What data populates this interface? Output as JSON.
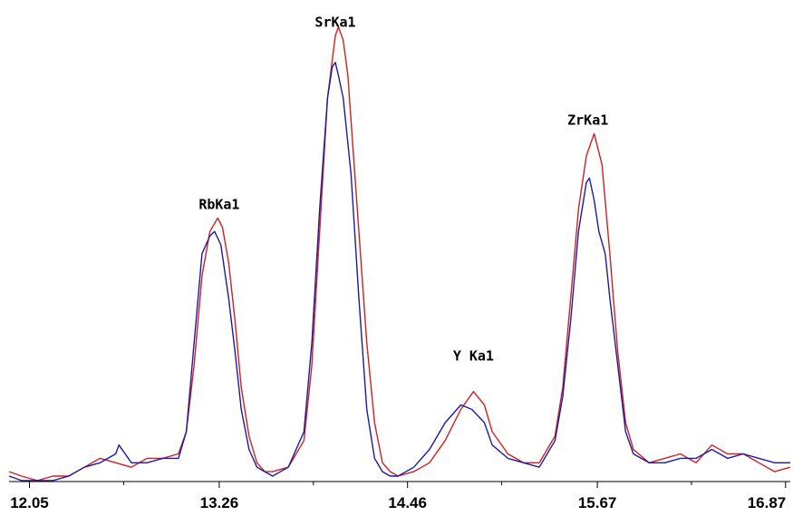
{
  "chart_data": {
    "type": "line",
    "title": "",
    "xlabel": "",
    "ylabel": "",
    "xlim": [
      11.92,
      16.9
    ],
    "ylim": [
      0,
      105
    ],
    "grid": false,
    "legend": "none",
    "x_ticks": [
      {
        "value": 12.05,
        "label": "12.05"
      },
      {
        "value": 13.26,
        "label": "13.26"
      },
      {
        "value": 14.46,
        "label": "14.46"
      },
      {
        "value": 15.67,
        "label": "15.67"
      },
      {
        "value": 16.87,
        "label": "16.87"
      }
    ],
    "minor_ticks": [
      12.65,
      13.86,
      15.06,
      16.27
    ],
    "annotations": [
      {
        "text": "RbKa1",
        "x": 13.26,
        "y": 58
      },
      {
        "text": "SrKa1",
        "x": 14.0,
        "y": 99
      },
      {
        "text": "Y  Ka1",
        "x": 14.88,
        "y": 24
      },
      {
        "text": "ZrKa1",
        "x": 15.61,
        "y": 77
      }
    ],
    "series": [
      {
        "color": "#d02020",
        "x": [
          11.92,
          12.0,
          12.1,
          12.2,
          12.3,
          12.4,
          12.5,
          12.6,
          12.7,
          12.8,
          12.9,
          13.0,
          13.05,
          13.1,
          13.15,
          13.2,
          13.25,
          13.28,
          13.32,
          13.36,
          13.4,
          13.45,
          13.5,
          13.55,
          13.6,
          13.7,
          13.8,
          13.85,
          13.9,
          13.95,
          14.0,
          14.02,
          14.05,
          14.08,
          14.1,
          14.15,
          14.2,
          14.25,
          14.3,
          14.35,
          14.4,
          14.5,
          14.6,
          14.7,
          14.8,
          14.88,
          14.95,
          15.0,
          15.1,
          15.2,
          15.3,
          15.4,
          15.45,
          15.5,
          15.55,
          15.6,
          15.65,
          15.7,
          15.75,
          15.8,
          15.85,
          15.9,
          16.0,
          16.1,
          16.2,
          16.3,
          16.4,
          16.5,
          16.6,
          16.7,
          16.8,
          16.9
        ],
        "values": [
          1,
          0,
          -1,
          0,
          0,
          2,
          4,
          3,
          2,
          4,
          4,
          5,
          10,
          25,
          45,
          55,
          58,
          56,
          48,
          35,
          20,
          9,
          3,
          1,
          1,
          2,
          8,
          25,
          55,
          85,
          99,
          101,
          98,
          90,
          80,
          55,
          30,
          12,
          3,
          1,
          0,
          1,
          3,
          8,
          15,
          19,
          16,
          10,
          5,
          3,
          3,
          9,
          20,
          40,
          60,
          72,
          77,
          70,
          50,
          28,
          12,
          6,
          3,
          4,
          5,
          3,
          7,
          5,
          5,
          3,
          1,
          2
        ]
      },
      {
        "color": "#1a1aa8",
        "x": [
          11.92,
          12.0,
          12.1,
          12.2,
          12.3,
          12.4,
          12.5,
          12.6,
          12.62,
          12.7,
          12.8,
          12.9,
          13.0,
          13.05,
          13.1,
          13.15,
          13.2,
          13.23,
          13.27,
          13.32,
          13.36,
          13.4,
          13.45,
          13.5,
          13.55,
          13.6,
          13.7,
          13.8,
          13.85,
          13.9,
          13.95,
          13.98,
          14.0,
          14.02,
          14.05,
          14.1,
          14.15,
          14.2,
          14.25,
          14.3,
          14.35,
          14.4,
          14.5,
          14.6,
          14.7,
          14.8,
          14.87,
          14.95,
          15.0,
          15.1,
          15.2,
          15.3,
          15.4,
          15.45,
          15.5,
          15.55,
          15.6,
          15.62,
          15.65,
          15.68,
          15.72,
          15.75,
          15.8,
          15.85,
          15.9,
          16.0,
          16.1,
          16.2,
          16.3,
          16.4,
          16.5,
          16.6,
          16.7,
          16.8,
          16.9
        ],
        "values": [
          0,
          -1,
          -1,
          -1,
          0,
          2,
          3,
          5,
          7,
          3,
          3,
          4,
          4,
          10,
          30,
          50,
          54,
          55,
          52,
          40,
          28,
          15,
          6,
          2,
          1,
          0,
          2,
          10,
          30,
          60,
          85,
          92,
          93,
          90,
          85,
          68,
          40,
          15,
          4,
          1,
          0,
          0,
          2,
          6,
          12,
          16,
          15,
          12,
          7,
          4,
          3,
          2,
          8,
          18,
          35,
          55,
          66,
          67,
          62,
          55,
          50,
          40,
          25,
          10,
          5,
          3,
          3,
          4,
          4,
          6,
          4,
          5,
          4,
          3,
          3
        ]
      }
    ]
  }
}
